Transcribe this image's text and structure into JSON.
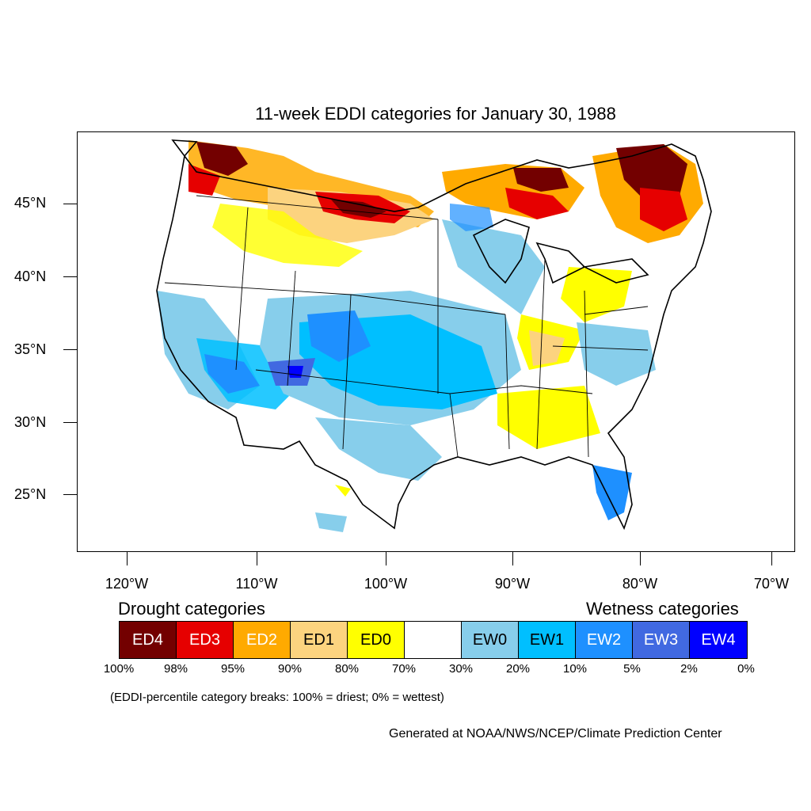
{
  "title": "11-week EDDI categories for January 30, 1988",
  "lat_labels": [
    "45°N",
    "40°N",
    "35°N",
    "30°N",
    "25°N"
  ],
  "lon_labels": [
    "120°W",
    "110°W",
    "100°W",
    "90°W",
    "80°W",
    "70°W"
  ],
  "legend": {
    "drought_heading": "Drought categories",
    "wetness_heading": "Wetness categories",
    "categories": [
      {
        "label": "ED4",
        "color": "#730000",
        "text_color": "#ffffff"
      },
      {
        "label": "ED3",
        "color": "#e60000",
        "text_color": "#ffffff"
      },
      {
        "label": "ED2",
        "color": "#ffaa00",
        "text_color": "#ffffff"
      },
      {
        "label": "ED1",
        "color": "#fcd37f",
        "text_color": "#000000"
      },
      {
        "label": "ED0",
        "color": "#ffff00",
        "text_color": "#000000"
      },
      {
        "label": "",
        "color": "#ffffff",
        "text_color": "#000000"
      },
      {
        "label": "EW0",
        "color": "#87ceeb",
        "text_color": "#000000"
      },
      {
        "label": "EW1",
        "color": "#00bfff",
        "text_color": "#000000"
      },
      {
        "label": "EW2",
        "color": "#1e90ff",
        "text_color": "#ffffff"
      },
      {
        "label": "EW3",
        "color": "#4169e1",
        "text_color": "#ffffff"
      },
      {
        "label": "EW4",
        "color": "#0000ff",
        "text_color": "#ffffff"
      }
    ],
    "breaks": [
      "100%",
      "98%",
      "95%",
      "90%",
      "80%",
      "70%",
      "30%",
      "20%",
      "10%",
      "5%",
      "2%",
      "0%"
    ]
  },
  "note": "(EDDI-percentile category breaks: 100% = driest; 0% = wettest)",
  "credit": "Generated at NOAA/NWS/NCEP/Climate Prediction Center"
}
